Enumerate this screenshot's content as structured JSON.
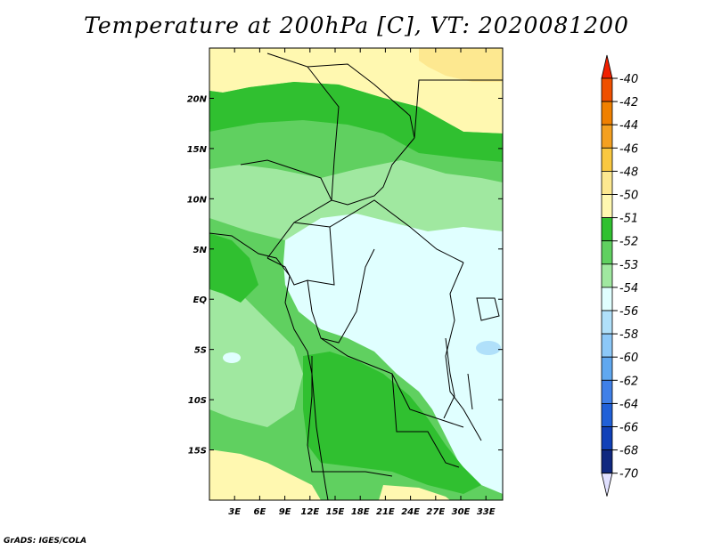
{
  "title": "Temperature at 200hPa [C], VT: 2020081200",
  "footer": "GrADS: IGES/COLA",
  "map": {
    "lat_ticks": [
      "20N",
      "15N",
      "10N",
      "5N",
      "EQ",
      "5S",
      "10S",
      "15S"
    ],
    "lon_ticks": [
      "3E",
      "6E",
      "9E",
      "12E",
      "15E",
      "18E",
      "21E",
      "24E",
      "27E",
      "30E",
      "33E"
    ],
    "lon_range": [
      0,
      35
    ],
    "lat_range": [
      -20,
      25
    ]
  },
  "colorbar": {
    "labels": [
      "-40",
      "-42",
      "-44",
      "-46",
      "-48",
      "-50",
      "-51",
      "-52",
      "-53",
      "-54",
      "-56",
      "-58",
      "-60",
      "-62",
      "-64",
      "-66",
      "-68",
      "-70"
    ],
    "colors": [
      "#f02000",
      "#f05000",
      "#f08000",
      "#f4a020",
      "#fac840",
      "#fde890",
      "#fff8b0",
      "#30c030",
      "#60d060",
      "#a0e8a0",
      "#e0ffff",
      "#b0e0fa",
      "#8cc8f8",
      "#60a8f0",
      "#4080e8",
      "#2060d8",
      "#1040b8",
      "#102880",
      "#0a1660"
    ]
  },
  "palette": {
    "w50": "#fde890",
    "w51": "#fff8b0",
    "g52": "#30c030",
    "g53": "#60d060",
    "g54": "#a0e8a0",
    "c56": "#e0ffff",
    "c58": "#b0e0fa"
  }
}
